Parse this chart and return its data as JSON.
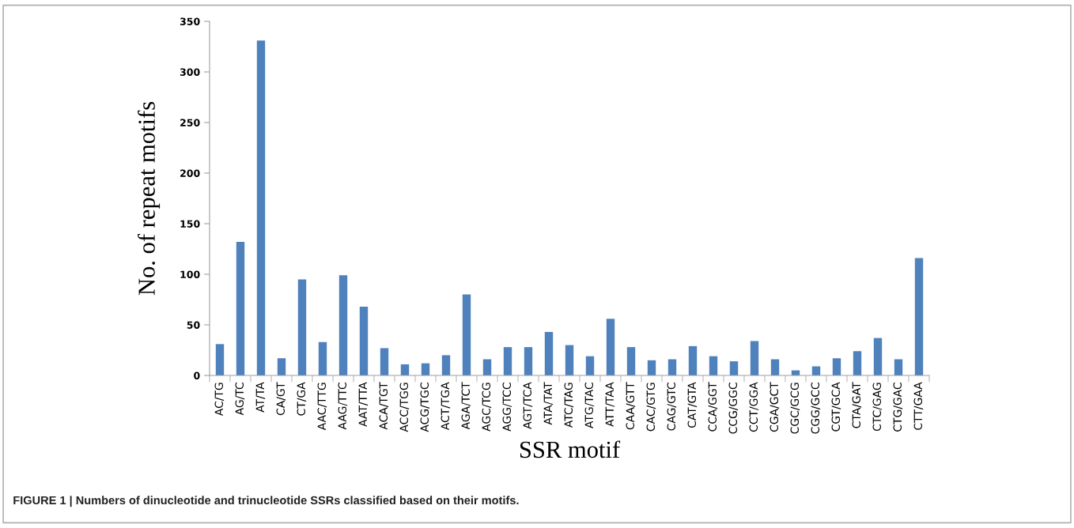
{
  "chart_data": {
    "type": "bar",
    "ylabel": "No. of repeat motifs",
    "xlabel": "SSR motif",
    "categories": [
      "AC/TG",
      "AG/TC",
      "AT/TA",
      "CA/GT",
      "CT/GA",
      "AAC/TTG",
      "AAG/TTC",
      "AAT/TTA",
      "ACA/TGT",
      "ACC/TGG",
      "ACG/TGC",
      "ACT/TGA",
      "AGA/TCT",
      "AGC/TCG",
      "AGG/TCC",
      "AGT/TCA",
      "ATA/TAT",
      "ATC/TAG",
      "ATG/TAC",
      "ATT/TAA",
      "CAA/GTT",
      "CAC/GTG",
      "CAG/GTC",
      "CAT/GTA",
      "CCA/GGT",
      "CCG/GGC",
      "CCT/GGA",
      "CGA/GCT",
      "CGC/GCG",
      "CGG/GCC",
      "CGT/GCA",
      "CTA/GAT",
      "CTC/GAG",
      "CTG/GAC",
      "CTT/GAA"
    ],
    "values": [
      31,
      132,
      331,
      17,
      95,
      33,
      99,
      68,
      27,
      11,
      12,
      20,
      80,
      16,
      28,
      28,
      43,
      30,
      19,
      56,
      28,
      15,
      16,
      29,
      19,
      14,
      34,
      16,
      5,
      9,
      17,
      24,
      37,
      16,
      116
    ],
    "color": "#4f81bd",
    "ylim": [
      0,
      350
    ],
    "yticks": [
      0,
      50,
      100,
      150,
      200,
      250,
      300,
      350
    ],
    "grid": false,
    "legend": false,
    "annotations": [
      "FIGURE 1 | Numbers of dinucleotide and trinucleotide SSRs classified based on their motifs."
    ]
  }
}
